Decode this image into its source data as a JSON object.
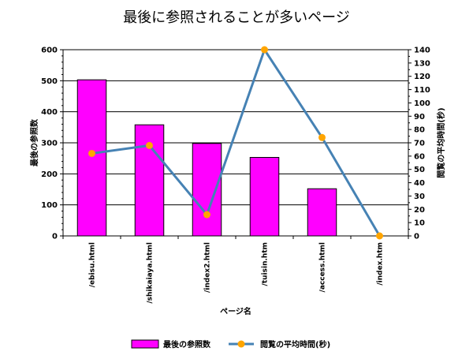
{
  "chart_data": {
    "type": "bar",
    "title": "最後に参照されることが多いページ",
    "xlabel": "ページ名",
    "categories": [
      "/ebisu.html",
      "/shikaiaya.html",
      "/index2.html",
      "/tuisin.htm",
      "/access.html",
      "/index.htm"
    ],
    "y_left": {
      "label": "最後の参照数",
      "lim": [
        0,
        600
      ],
      "ticks": [
        0,
        100,
        200,
        300,
        400,
        500,
        600
      ]
    },
    "y_right": {
      "label": "閲覧の平均時間(秒)",
      "lim": [
        0,
        140
      ],
      "ticks": [
        0,
        10,
        20,
        30,
        40,
        50,
        60,
        70,
        80,
        90,
        100,
        110,
        120,
        130,
        140
      ]
    },
    "series": [
      {
        "name": "最後の参照数",
        "type": "bar",
        "axis": "left",
        "color": "#ff00ff",
        "values": [
          503,
          358,
          298,
          253,
          152,
          0
        ]
      },
      {
        "name": "閲覧の平均時間(秒)",
        "type": "line",
        "axis": "right",
        "color": "#4682b4",
        "marker_color": "#ffa500",
        "values": [
          62,
          68,
          16,
          140,
          74,
          0
        ]
      }
    ],
    "grid": true,
    "legend": "bottom"
  }
}
